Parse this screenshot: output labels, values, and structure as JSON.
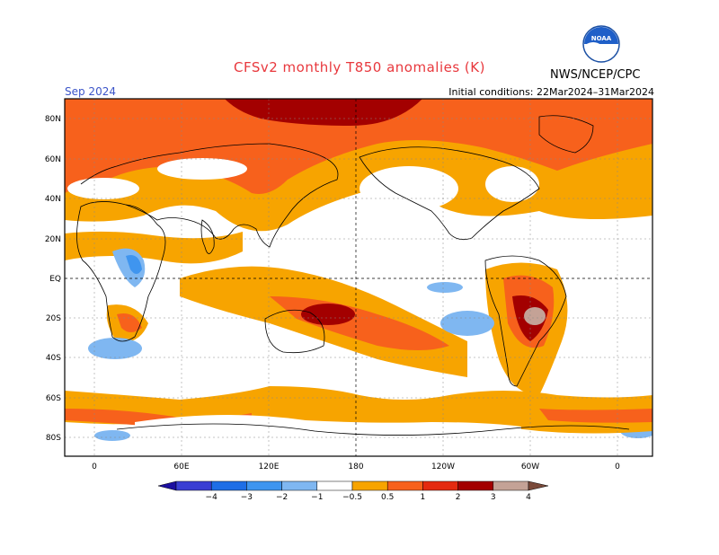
{
  "title": "CFSv2 monthly T850 anomalies (K)",
  "period": "Sep 2024",
  "initial_conditions": "Initial conditions: 22Mar2024–31Mar2024",
  "agency": "NWS/NCEP/CPC",
  "logo_text": "NOAA",
  "lat_labels": [
    "80N",
    "60N",
    "40N",
    "20N",
    "EQ",
    "20S",
    "40S",
    "60S",
    "80S"
  ],
  "lon_labels": [
    "0",
    "60E",
    "120E",
    "180",
    "120W",
    "60W",
    "0"
  ],
  "colorbar": {
    "labels": [
      "−4",
      "−3",
      "−2",
      "−1",
      "−0.5",
      "0.5",
      "1",
      "2",
      "3",
      "4"
    ],
    "colors": [
      "#1c0fa0",
      "#3a3fd3",
      "#1e6ee6",
      "#3f95ef",
      "#7fb7f1",
      "#ffffff",
      "#f7a400",
      "#f7611c",
      "#e42a10",
      "#a30000",
      "#c4a296",
      "#7a4a3a"
    ]
  }
}
